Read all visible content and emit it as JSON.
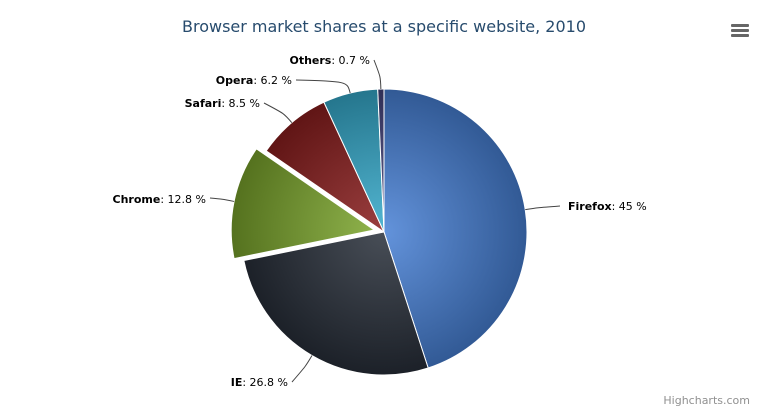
{
  "chart_data": {
    "type": "pie",
    "title": "Browser market shares at a specific website, 2010",
    "categories": [
      "Firefox",
      "IE",
      "Chrome",
      "Safari",
      "Opera",
      "Others"
    ],
    "values": [
      45.0,
      26.8,
      12.8,
      8.5,
      6.2,
      0.7
    ],
    "labels": [
      "45 %",
      "26.8 %",
      "12.8 %",
      "8.5 %",
      "6.2 %",
      "0.7 %"
    ],
    "sliced": [
      "Chrome"
    ],
    "colors": [
      "#2f6fd0",
      "#0b1320",
      "#6e9e14",
      "#7a0000",
      "#1a9ec4",
      "#2b2a6a"
    ],
    "legend": "none"
  },
  "credits": "Highcharts.com",
  "menu_icon": "hamburger-menu-icon"
}
